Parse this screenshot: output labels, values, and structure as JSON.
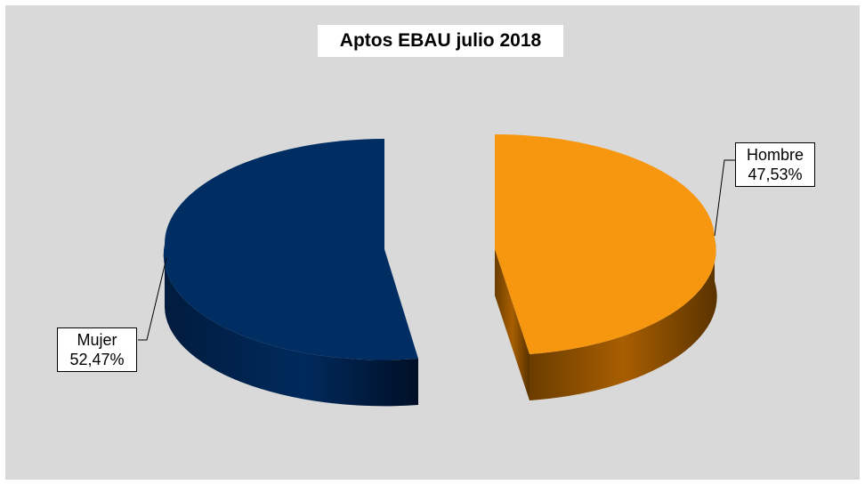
{
  "chart_data": {
    "type": "pie",
    "title": "Aptos EBAU julio 2018",
    "slices": [
      {
        "name": "Hombre",
        "value": 47.53,
        "label": "47,53%",
        "color": "#f7970f",
        "side_color": "#8a4d00"
      },
      {
        "name": "Mujer",
        "value": 52.47,
        "label": "52,47%",
        "color": "#002d62",
        "side_color": "#001a3a"
      }
    ],
    "exploded": true,
    "three_d": true,
    "background": "#d9d9d9"
  }
}
